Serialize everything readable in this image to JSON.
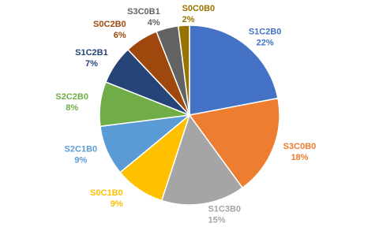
{
  "chart_data": {
    "type": "pie",
    "categories": [
      "S1C2B0",
      "S3C0B0",
      "S1C3B0",
      "S0C1B0",
      "S2C1B0",
      "S2C2B0",
      "S1C2B1",
      "S0C2B0",
      "S3C0B1",
      "S0C0B0"
    ],
    "values": [
      22,
      18,
      15,
      9,
      9,
      8,
      7,
      6,
      4,
      2
    ],
    "value_labels": [
      "22%",
      "18%",
      "15%",
      "9%",
      "9%",
      "8%",
      "7%",
      "6%",
      "4%",
      "2%"
    ],
    "colors": [
      "#4472c4",
      "#ed7d31",
      "#a5a5a5",
      "#ffc000",
      "#5b9bd5",
      "#70ad47",
      "#264478",
      "#9e480e",
      "#636363",
      "#997300"
    ]
  }
}
